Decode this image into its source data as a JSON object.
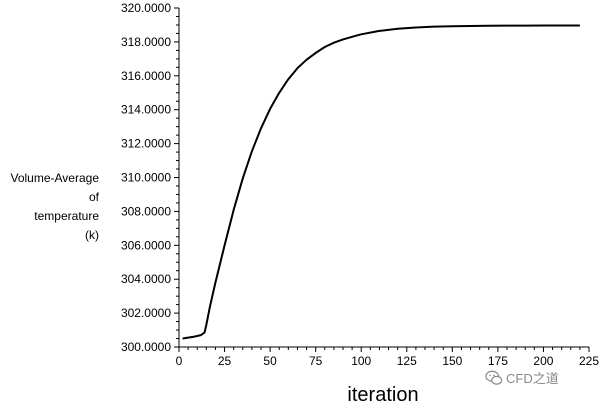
{
  "chart_data": {
    "type": "line",
    "xlabel": "iteration",
    "ylabel_lines": [
      "Volume-Average",
      "of",
      "temperature",
      "(k)"
    ],
    "xlim": [
      0,
      225
    ],
    "ylim": [
      300,
      320
    ],
    "x_ticks": [
      "0",
      "25",
      "50",
      "75",
      "100",
      "125",
      "150",
      "175",
      "200",
      "225"
    ],
    "y_ticks": [
      "300.0000",
      "302.0000",
      "304.0000",
      "306.0000",
      "308.0000",
      "310.0000",
      "312.0000",
      "314.0000",
      "316.0000",
      "318.0000",
      "320.0000"
    ],
    "series": [
      {
        "color": "#000000",
        "x": [
          2,
          8,
          12,
          14,
          15,
          17,
          20,
          25,
          30,
          35,
          40,
          45,
          50,
          55,
          60,
          65,
          70,
          75,
          80,
          85,
          90,
          95,
          100,
          110,
          120,
          130,
          140,
          150,
          160,
          170,
          180,
          190,
          200,
          210,
          220
        ],
        "y": [
          300.5,
          300.6,
          300.7,
          300.85,
          301.3,
          302.4,
          303.8,
          306.0,
          308.1,
          309.95,
          311.55,
          312.9,
          314.05,
          315.0,
          315.8,
          316.45,
          316.95,
          317.35,
          317.7,
          317.95,
          318.15,
          318.3,
          318.45,
          318.65,
          318.78,
          318.85,
          318.9,
          318.92,
          318.94,
          318.95,
          318.96,
          318.96,
          318.97,
          318.97,
          318.97
        ]
      }
    ]
  },
  "watermark": {
    "text": "CFD之道",
    "icon": "wechat-icon"
  }
}
